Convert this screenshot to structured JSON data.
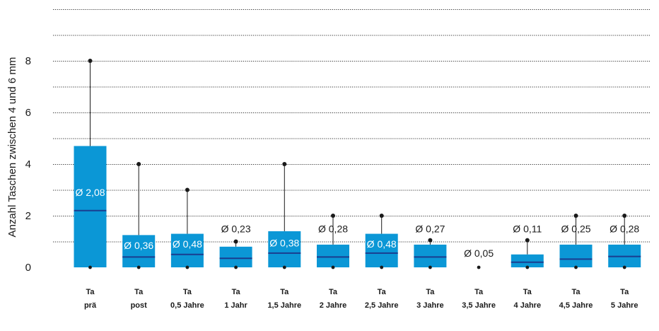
{
  "chart_data": {
    "type": "boxplot",
    "ylabel": "Anzahl Taschen zwischen 4 und 6 mm",
    "ylim": [
      0,
      10
    ],
    "yticks": [
      "0",
      "2",
      "4",
      "6",
      "8"
    ],
    "grid": true,
    "colors": {
      "box": "#0b97d6",
      "median": "#1a3d8f",
      "whisker": "#1a1a1a",
      "grid": "#333333",
      "label_inside": "#ffffff",
      "label_outside": "#1a1a1a"
    },
    "categories": [
      {
        "line1": "Ta",
        "line2": "prä",
        "q1": 0,
        "median": 2.2,
        "q3": 4.7,
        "max": 8,
        "min": 0,
        "mean_label": "Ø 2,08",
        "mean_pos": 2.9,
        "label_inside": true
      },
      {
        "line1": "Ta",
        "line2": "post",
        "q1": 0,
        "median": 0.4,
        "q3": 1.25,
        "max": 4,
        "min": 0,
        "mean_label": "Ø 0,36",
        "mean_pos": 0.85,
        "label_inside": true
      },
      {
        "line1": "Ta",
        "line2": "0,5 Jahre",
        "q1": 0,
        "median": 0.5,
        "q3": 1.3,
        "max": 3,
        "min": 0,
        "mean_label": "Ø 0,48",
        "mean_pos": 0.9,
        "label_inside": true
      },
      {
        "line1": "Ta",
        "line2": "1 Jahr",
        "q1": 0,
        "median": 0.35,
        "q3": 0.8,
        "max": 1,
        "min": 0,
        "mean_label": "Ø 0,23",
        "mean_pos": 1.5,
        "label_inside": false
      },
      {
        "line1": "Ta",
        "line2": "1,5 Jahre",
        "q1": 0,
        "median": 0.55,
        "q3": 1.4,
        "max": 4,
        "min": 0,
        "mean_label": "Ø 0,38",
        "mean_pos": 0.95,
        "label_inside": true
      },
      {
        "line1": "Ta",
        "line2": "2 Jahre",
        "q1": 0,
        "median": 0.4,
        "q3": 0.88,
        "max": 2,
        "min": 0,
        "mean_label": "Ø 0,28",
        "mean_pos": 1.5,
        "label_inside": false
      },
      {
        "line1": "Ta",
        "line2": "2,5 Jahre",
        "q1": 0,
        "median": 0.55,
        "q3": 1.3,
        "max": 2,
        "min": 0,
        "mean_label": "Ø 0,48",
        "mean_pos": 0.9,
        "label_inside": true
      },
      {
        "line1": "Ta",
        "line2": "3 Jahre",
        "q1": 0,
        "median": 0.4,
        "q3": 0.88,
        "max": 1.05,
        "min": 0,
        "mean_label": "Ø 0,27",
        "mean_pos": 1.5,
        "label_inside": false
      },
      {
        "line1": "Ta",
        "line2": "3,5 Jahre",
        "q1": 0,
        "median": 0,
        "q3": 0,
        "max": 0,
        "min": 0,
        "mean_label": "Ø 0,05",
        "mean_pos": 0.55,
        "label_inside": false
      },
      {
        "line1": "Ta",
        "line2": "4 Jahre",
        "q1": 0,
        "median": 0.2,
        "q3": 0.5,
        "max": 1.05,
        "min": 0,
        "mean_label": "Ø 0,11",
        "mean_pos": 1.5,
        "label_inside": false
      },
      {
        "line1": "Ta",
        "line2": "4,5 Jahre",
        "q1": 0,
        "median": 0.32,
        "q3": 0.88,
        "max": 2,
        "min": 0,
        "mean_label": "Ø 0,25",
        "mean_pos": 1.5,
        "label_inside": false
      },
      {
        "line1": "Ta",
        "line2": "5 Jahre",
        "q1": 0,
        "median": 0.42,
        "q3": 0.88,
        "max": 2,
        "min": 0,
        "mean_label": "Ø 0,28",
        "mean_pos": 1.5,
        "label_inside": false
      }
    ]
  }
}
